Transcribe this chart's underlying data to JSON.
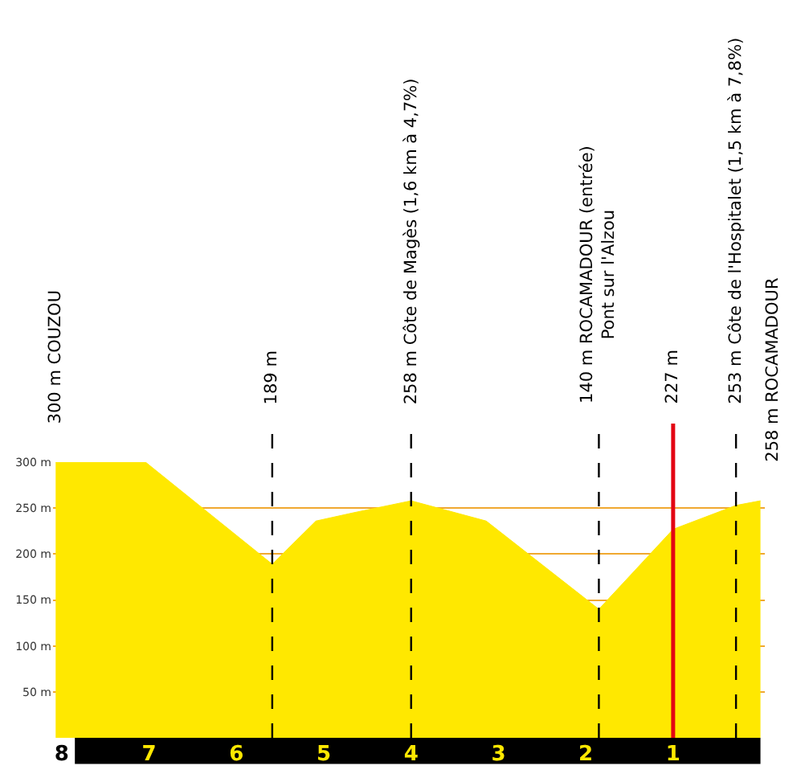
{
  "chart_data": {
    "type": "area",
    "x": [
      8.07,
      7.04,
      5.59,
      5.09,
      4.66,
      4.0,
      3.14,
      1.85,
      1.0,
      0.28,
      0.0
    ],
    "values": [
      300,
      300,
      189,
      236,
      245,
      258,
      236,
      140,
      227,
      253,
      258
    ],
    "color": "#ffe800",
    "xlim": [
      8.1,
      -0.05
    ],
    "xticks": [
      8,
      7,
      6,
      5,
      4,
      3,
      2,
      1
    ],
    "ylim": [
      0,
      300
    ],
    "yticks": [
      {
        "value": 50,
        "label": "50 m"
      },
      {
        "value": 100,
        "label": "100 m"
      },
      {
        "value": 150,
        "label": "150 m"
      },
      {
        "value": 200,
        "label": "200 m"
      },
      {
        "value": 250,
        "label": "250 m"
      },
      {
        "value": 300,
        "label": "300 m"
      }
    ],
    "grid": "y",
    "ref_lines": [
      {
        "axis": "x",
        "value": 5.59,
        "label": "189 m",
        "line_style": "dashed",
        "color": "#000000"
      },
      {
        "axis": "x",
        "value": 4.0,
        "label": "258 m Côte de Magès (1,6 km à 4,7%)",
        "line_style": "dashed",
        "color": "#000000"
      },
      {
        "axis": "x",
        "value": 1.85,
        "label": "140 m ROCAMADOUR (entrée)\nPont sur l'Alzou",
        "line_style": "dashed",
        "color": "#000000"
      },
      {
        "axis": "x",
        "value": 1.0,
        "label": "227 m",
        "line_style": "solid",
        "color": "#e30613"
      },
      {
        "axis": "x",
        "value": 0.28,
        "label": "253 m Côte de l'Hospitalet (1,5 km à 7,8%)",
        "line_style": "dashed",
        "color": "#000000"
      }
    ],
    "annotations": [
      {
        "text": "300 m COUZOU",
        "x": 8.07,
        "y": 300
      },
      {
        "text": "258 m ROCAMADOUR",
        "x": 0.0,
        "y": 258
      }
    ]
  }
}
